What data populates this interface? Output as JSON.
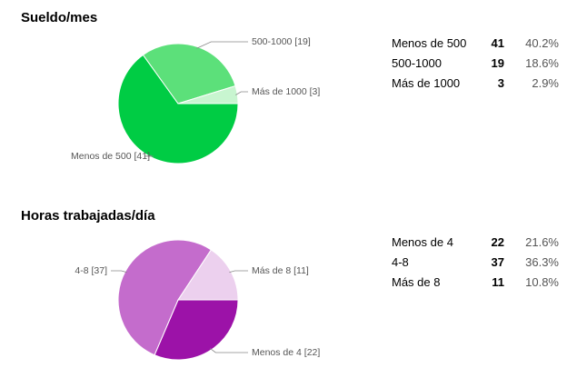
{
  "chart_data": [
    {
      "type": "pie",
      "title": "Sueldo/mes",
      "slices": [
        {
          "label": "Menos de 500",
          "value": 41,
          "percent": "40.2%",
          "color": "#00cc44",
          "callout": "Menos de 500 [41]"
        },
        {
          "label": "500-1000",
          "value": 19,
          "percent": "18.6%",
          "color": "#5ce07a",
          "callout": "500-1000 [19]"
        },
        {
          "label": "Más de 1000",
          "value": 3,
          "percent": "2.9%",
          "color": "#c8f5d0",
          "callout": "Más de 1000 [3]"
        }
      ]
    },
    {
      "type": "pie",
      "title": "Horas trabajadas/día",
      "slices": [
        {
          "label": "Menos de 4",
          "value": 22,
          "percent": "21.6%",
          "color": "#9c12a8",
          "callout": "Menos de 4 [22]"
        },
        {
          "label": "4-8",
          "value": 37,
          "percent": "36.3%",
          "color": "#c46ccc",
          "callout": "4-8 [37]"
        },
        {
          "label": "Más de 8",
          "value": 11,
          "percent": "10.8%",
          "color": "#ecd0ee",
          "callout": "Más de 8 [11]"
        }
      ]
    }
  ]
}
